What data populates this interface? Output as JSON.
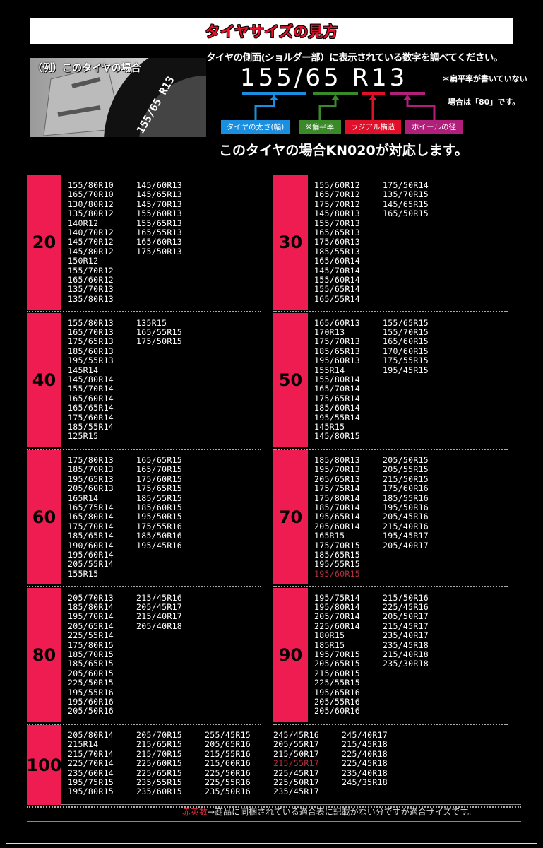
{
  "header": {
    "title": "タイヤサイズの見方",
    "example_label": "（例）このタイヤの場合",
    "instruction": "タイヤの側面(ショルダー部）に表示されている数字を調べてください。",
    "size_text": "155/65 R13",
    "labels": [
      "タイヤの太さ(幅)",
      "※偏平率",
      "ラジアル構造",
      "ホイールの径"
    ],
    "note": [
      "＊扁平率が書いていない",
      "場合は「80」です。"
    ],
    "conclusion": "このタイヤの場合KN020が対応します。"
  },
  "groups": [
    {
      "label": "20",
      "columns": [
        [
          "155/80R10",
          "165/70R10",
          "130/80R12",
          "135/80R12",
          "140R12",
          "140/70R12",
          "145/70R12",
          "145/80R12",
          "150R12",
          "155/70R12",
          "165/60R12",
          "135/70R13",
          "135/80R13"
        ],
        [
          "145/60R13",
          "145/65R13",
          "145/70R13",
          "155/60R13",
          "155/65R13",
          "165/55R13",
          "165/60R13",
          "175/50R13"
        ]
      ]
    },
    {
      "label": "30",
      "columns": [
        [
          "155/60R12",
          "165/70R12",
          "175/70R12",
          "145/80R13",
          "155/70R13",
          "165/65R13",
          "175/60R13",
          "185/55R13",
          "165/60R14",
          "145/70R14",
          "155/60R14",
          "155/65R14",
          "165/55R14"
        ],
        [
          "175/50R14",
          "135/70R15",
          "145/65R15",
          "165/50R15"
        ]
      ]
    },
    {
      "label": "40",
      "columns": [
        [
          "155/80R13",
          "165/70R13",
          "175/65R13",
          "185/60R13",
          "195/55R13",
          "145R14",
          "145/80R14",
          "155/70R14",
          "165/60R14",
          "165/65R14",
          "175/60R14",
          "185/55R14",
          "125R15"
        ],
        [
          "135R15",
          "165/55R15",
          "175/50R15"
        ]
      ]
    },
    {
      "label": "50",
      "columns": [
        [
          "165/60R13",
          "170R13",
          "175/70R13",
          "185/65R13",
          "195/60R13",
          "155R14",
          "155/80R14",
          "165/70R14",
          "175/65R14",
          "185/60R14",
          "195/55R14",
          "145R15",
          "145/80R15"
        ],
        [
          "155/65R15",
          "155/70R15",
          "165/60R15",
          "170/60R15",
          "175/55R15",
          "195/45R15"
        ]
      ]
    },
    {
      "label": "60",
      "columns": [
        [
          "175/80R13",
          "185/70R13",
          "195/65R13",
          "205/60R13",
          "165R14",
          "165/75R14",
          "165/80R14",
          "175/70R14",
          "185/65R14",
          "190/60R14",
          "195/60R14",
          "205/55R14",
          "155R15"
        ],
        [
          "165/65R15",
          "165/70R15",
          "175/60R15",
          "175/65R15",
          "185/55R15",
          "185/60R15",
          "195/50R15",
          "175/55R16",
          "185/50R16",
          "195/45R16"
        ]
      ]
    },
    {
      "label": "70",
      "columns": [
        [
          "185/80R13",
          "195/70R13",
          "205/65R13",
          "175/75R14",
          "175/80R14",
          "185/70R14",
          "195/65R14",
          "205/60R14",
          "165R15",
          "175/70R15",
          "185/65R15",
          "195/55R15",
          {
            "text": "195/60R15",
            "red": true
          }
        ],
        [
          "205/50R15",
          "205/55R15",
          "215/50R15",
          "175/60R16",
          "185/55R16",
          "195/50R16",
          "205/45R16",
          "215/40R16",
          "195/45R17",
          "205/40R17"
        ]
      ]
    },
    {
      "label": "80",
      "columns": [
        [
          "205/70R13",
          "185/80R14",
          "195/70R14",
          "205/65R14",
          "225/55R14",
          "175/80R15",
          "185/70R15",
          "185/65R15",
          "205/60R15",
          "225/50R15",
          "195/55R16",
          "195/60R16",
          "205/50R16"
        ],
        [
          "215/45R16",
          "205/45R17",
          "215/40R17",
          "205/40R18"
        ]
      ]
    },
    {
      "label": "90",
      "columns": [
        [
          "195/75R14",
          "195/80R14",
          "205/70R14",
          "225/60R14",
          "180R15",
          "185R15",
          "195/70R15",
          "205/65R15",
          "215/60R15",
          "225/55R15",
          "195/65R16",
          "205/55R16",
          "205/60R16"
        ],
        [
          "215/50R16",
          "225/45R16",
          "205/50R17",
          "215/45R17",
          "235/40R17",
          "235/45R18",
          "215/40R18",
          "235/30R18"
        ]
      ]
    },
    {
      "label": "100",
      "columns": [
        [
          "205/80R14",
          "215R14",
          "215/70R14",
          "225/70R14",
          "235/60R14",
          "195/75R15",
          "195/80R15"
        ],
        [
          "205/70R15",
          "215/65R15",
          "215/70R15",
          "225/60R15",
          "225/65R15",
          "235/55R15",
          "235/60R15"
        ],
        [
          "255/45R15",
          "205/65R16",
          "215/55R16",
          "215/60R16",
          "225/50R16",
          "225/55R16",
          "235/50R16"
        ],
        [
          "245/45R16",
          "205/55R17",
          "215/50R17",
          {
            "text": "215/55R17",
            "red": true
          },
          "225/45R17",
          "225/50R17",
          "235/45R17"
        ],
        [
          "245/40R17",
          "215/45R18",
          "225/40R18",
          "225/45R18",
          "235/40R18",
          "245/35R18"
        ]
      ]
    }
  ],
  "footer": {
    "red": "赤英数",
    "text": "→商品に同梱されている適合表に記載がない分ですが適合サイズです。"
  }
}
